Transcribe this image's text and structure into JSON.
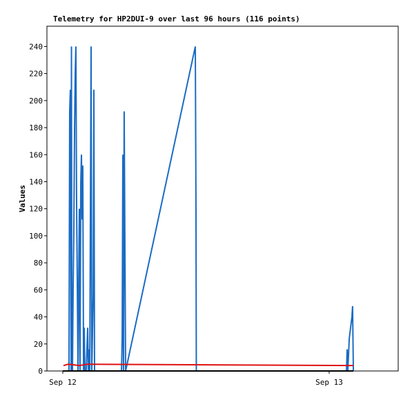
{
  "chart_data": {
    "type": "line",
    "title": "Telemetry for HP2DUI-9 over last 96 hours (116 points)",
    "y_label": "Values",
    "xlim": [
      -1.43,
      30.22
    ],
    "xticks": [
      {
        "value": 0,
        "label": "Sep 12"
      },
      {
        "value": 24,
        "label": "Sep 13"
      }
    ],
    "ylim": [
      0,
      255
    ],
    "yticks": [
      0,
      20,
      40,
      60,
      80,
      100,
      120,
      140,
      160,
      180,
      200,
      220,
      240
    ],
    "series": [
      {
        "color": "#1a6bc4",
        "x": [
          0.56,
          0.62,
          0.68,
          0.75,
          0.78,
          0.81,
          0.87,
          0.93,
          0.99,
          1.06,
          1.12,
          1.18,
          1.24,
          1.31,
          1.37,
          1.43,
          1.49,
          1.55,
          1.62,
          1.68,
          1.74,
          1.8,
          1.87,
          1.93,
          1.99,
          2.11,
          2.24,
          2.3,
          2.36,
          2.43,
          2.55,
          2.61,
          2.74,
          2.8,
          2.86,
          5.29,
          5.35,
          5.41,
          5.47,
          5.53,
          5.6,
          5.66,
          11.94,
          12.0,
          12.03,
          25.56,
          25.62,
          25.68,
          25.81,
          25.93,
          26.05,
          26.11,
          26.18
        ],
        "values": [
          0,
          192,
          208,
          0,
          240,
          20,
          0,
          60,
          100,
          180,
          220,
          240,
          128,
          60,
          0,
          64,
          120,
          0,
          140,
          160,
          112,
          152,
          0,
          32,
          0,
          0,
          32,
          0,
          16,
          0,
          240,
          0,
          56,
          208,
          0,
          0,
          24,
          160,
          0,
          192,
          88,
          0,
          240,
          120,
          0,
          0,
          16,
          0,
          24,
          32,
          40,
          48,
          0
        ]
      },
      {
        "color": "#e01010",
        "x": [
          0.06,
          0.5,
          1.5,
          2.2,
          26.18
        ],
        "values": [
          4,
          5,
          4,
          5,
          4
        ]
      },
      {
        "color": "#000000",
        "x": [
          0.0,
          26.18
        ],
        "values": [
          0,
          0
        ]
      }
    ]
  }
}
